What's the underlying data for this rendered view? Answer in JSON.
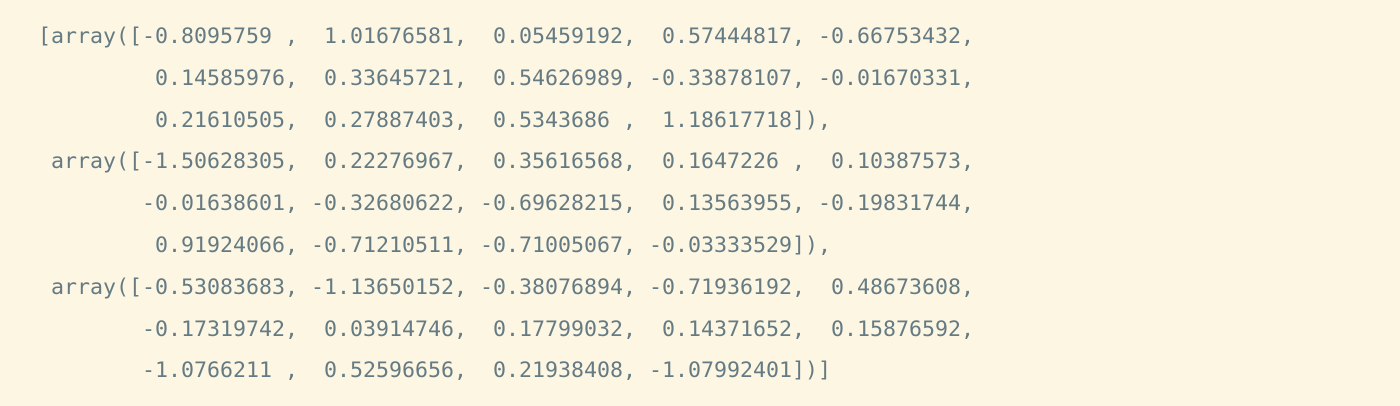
{
  "output": {
    "lines": [
      "[array([-0.8095759 ,  1.01676581,  0.05459192,  0.57444817, -0.66753432,",
      "         0.14585976,  0.33645721,  0.54626989, -0.33878107, -0.01670331,",
      "         0.21610505,  0.27887403,  0.5343686 ,  1.18617718]),",
      " array([-1.50628305,  0.22276967,  0.35616568,  0.1647226 ,  0.10387573,",
      "        -0.01638601, -0.32680622, -0.69628215,  0.13563955, -0.19831744,",
      "         0.91924066, -0.71210511, -0.71005067, -0.03333529]),",
      " array([-0.53083683, -1.13650152, -0.38076894, -0.71936192,  0.48673608,",
      "        -0.17319742,  0.03914746,  0.17799032,  0.14371652,  0.15876592,",
      "        -1.0766211 ,  0.52596656,  0.21938408, -1.07992401])]"
    ]
  },
  "theme": {
    "background": "#fdf6e3",
    "text": "#657b83"
  }
}
